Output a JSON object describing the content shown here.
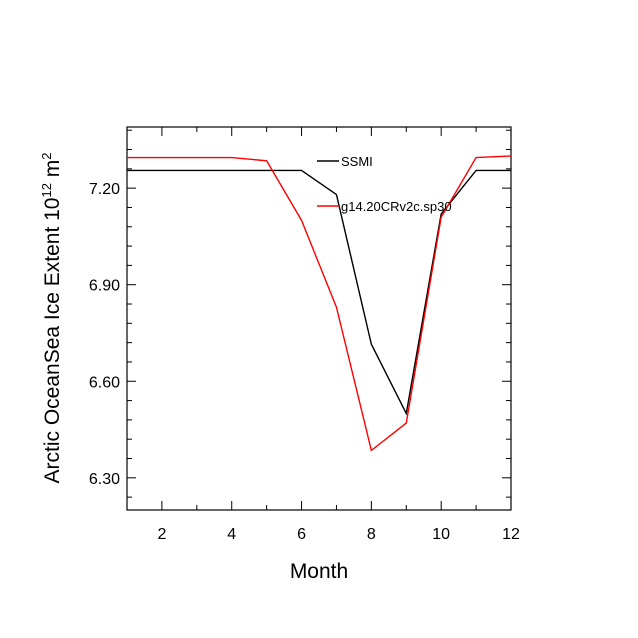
{
  "chart_data": {
    "type": "line",
    "xlabel": "Month",
    "ylabel_main": "Arctic OceanSea Ice Extent 10",
    "ylabel_sup": "12",
    "ylabel_unit": " m",
    "ylabel_unit_sup": "2",
    "xlim": [
      1,
      12
    ],
    "ylim": [
      6.2,
      7.39
    ],
    "xticks": [
      2,
      4,
      6,
      8,
      10,
      12
    ],
    "xtick_labels": [
      "2",
      "4",
      "6",
      "8",
      "10",
      "12"
    ],
    "yticks": [
      6.3,
      6.6,
      6.9,
      7.2
    ],
    "ytick_labels": [
      "6.30",
      "6.60",
      "6.90",
      "7.20"
    ],
    "x": [
      1,
      2,
      3,
      4,
      5,
      6,
      7,
      8,
      9,
      10,
      11,
      12
    ],
    "series": [
      {
        "name": "SSMI",
        "color": "#000000",
        "values": [
          7.255,
          7.255,
          7.255,
          7.255,
          7.255,
          7.255,
          7.18,
          6.715,
          6.5,
          7.12,
          7.255,
          7.255
        ]
      },
      {
        "name": "g14.20CRv2c.sp30",
        "color": "#ff0000",
        "values": [
          7.295,
          7.295,
          7.295,
          7.295,
          7.285,
          7.1,
          6.83,
          6.385,
          6.47,
          7.11,
          7.295,
          7.3
        ]
      }
    ],
    "grid": false,
    "legend_position": "inside-top"
  }
}
